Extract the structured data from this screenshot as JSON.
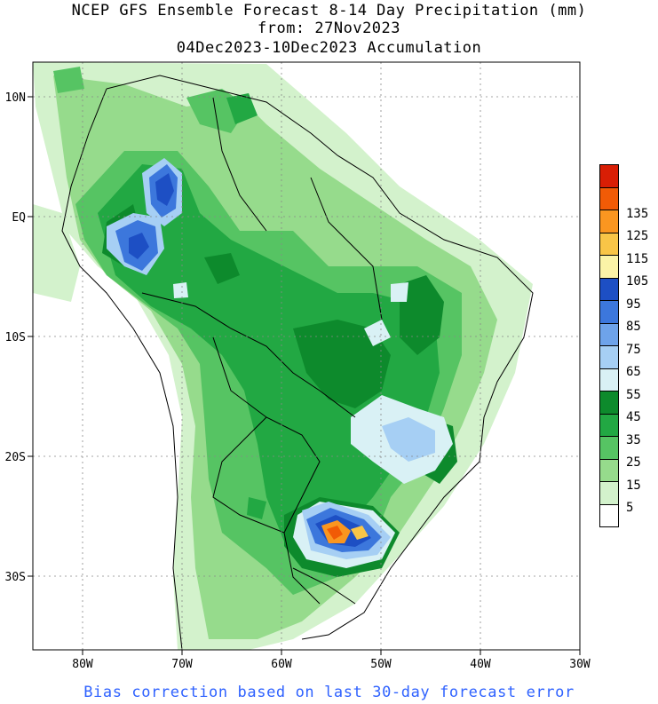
{
  "title": {
    "line1": "NCEP GFS Ensemble Forecast 8-14 Day Precipitation (mm)",
    "line2": "from: 27Nov2023",
    "line3": "04Dec2023-10Dec2023 Accumulation"
  },
  "footer": "Bias correction based on last 30-day forecast error",
  "map": {
    "lon_range": [
      -85,
      -30
    ],
    "lat_range": [
      -36,
      14
    ],
    "lon_ticks": [
      "80W",
      "70W",
      "60W",
      "50W",
      "40W",
      "30W"
    ],
    "lat_ticks": [
      "10N",
      "EQ",
      "10S",
      "20S",
      "30S"
    ],
    "grid": "dotted"
  },
  "legend": {
    "items": [
      {
        "label": "",
        "color": "#d81e05"
      },
      {
        "label": "135",
        "color": "#f15b06"
      },
      {
        "label": "125",
        "color": "#fa9620"
      },
      {
        "label": "115",
        "color": "#f9c547"
      },
      {
        "label": "105",
        "color": "#fbf3a7"
      },
      {
        "label": "95",
        "color": "#1d4fc4"
      },
      {
        "label": "85",
        "color": "#3c77dc"
      },
      {
        "label": "75",
        "color": "#6ea3ea"
      },
      {
        "label": "65",
        "color": "#a6cff4"
      },
      {
        "label": "55",
        "color": "#d9f1f5"
      },
      {
        "label": "45",
        "color": "#0d8a2c"
      },
      {
        "label": "35",
        "color": "#22a843"
      },
      {
        "label": "25",
        "color": "#56c463"
      },
      {
        "label": "15",
        "color": "#96db8c"
      },
      {
        "label": "5",
        "color": "#d3f2cc"
      },
      {
        "label": "",
        "color": "#ffffff"
      }
    ]
  }
}
